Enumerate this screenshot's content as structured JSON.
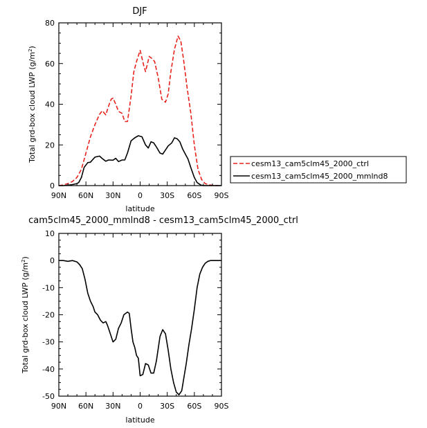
{
  "chart_data": [
    {
      "type": "line",
      "title": "DJF",
      "xlabel": "latitude",
      "ylabel": "Total grd-box cloud LWP",
      "ylabel_unit": "(g/m",
      "ylabel_sup": "2",
      "ylabel_close": ")",
      "xlim": [
        -90,
        90
      ],
      "ylim": [
        0,
        80
      ],
      "xticks": [
        -90,
        -60,
        -30,
        0,
        30,
        60,
        90
      ],
      "xtick_labels": [
        "90N",
        "60N",
        "30N",
        "0",
        "30S",
        "60S",
        "90S"
      ],
      "yticks": [
        0,
        20,
        40,
        60,
        80
      ],
      "ytick_labels": [
        "0",
        "20",
        "40",
        "60",
        "80"
      ],
      "legend_position": "right",
      "series": [
        {
          "name": "cesm13_cam5clm45_2000_ctrl",
          "color": "#e8211c",
          "dash": "dashed",
          "x": [
            -90,
            -85,
            -80,
            -75,
            -70,
            -65,
            -60,
            -55,
            -50,
            -45,
            -42,
            -38,
            -35,
            -32,
            -30,
            -27,
            -24,
            -20,
            -17,
            -14,
            -10,
            -7,
            -4,
            0,
            4,
            6,
            10,
            13,
            16,
            20,
            24,
            28,
            31,
            34,
            38,
            42,
            45,
            48,
            52,
            56,
            60,
            64,
            68,
            72,
            76,
            80,
            85,
            90
          ],
          "y": [
            0,
            0.3,
            1,
            2,
            4,
            8,
            16,
            24,
            30,
            35,
            36.8,
            34.8,
            39,
            42.5,
            43,
            40,
            36.5,
            35.5,
            31.5,
            31.5,
            44,
            56,
            61,
            66.5,
            59,
            56,
            63.5,
            62.5,
            61,
            53,
            42.5,
            41,
            45,
            56,
            67,
            73.5,
            71,
            62,
            48,
            36,
            20,
            8,
            3,
            1,
            0.4,
            0.1,
            0,
            0
          ]
        },
        {
          "name": "cesm13_cam5clm45_2000_mmlnd8",
          "color": "#000000",
          "dash": "solid",
          "x": [
            -90,
            -85,
            -80,
            -75,
            -70,
            -68,
            -65,
            -62,
            -58,
            -55,
            -50,
            -45,
            -42,
            -38,
            -35,
            -30,
            -27,
            -24,
            -20,
            -17,
            -14,
            -10,
            -6,
            -2,
            2,
            6,
            9,
            12,
            15,
            18,
            22,
            25,
            28,
            31,
            35,
            38,
            41,
            44,
            47,
            50,
            53,
            56,
            60,
            63,
            67,
            70,
            75,
            80,
            85,
            90
          ],
          "y": [
            0,
            0,
            0.2,
            0.5,
            1,
            1.5,
            4,
            9,
            11.3,
            11.5,
            14,
            14.5,
            13.3,
            12,
            12.6,
            12.5,
            13.4,
            11.8,
            12.6,
            12.6,
            16,
            22,
            23.5,
            24.5,
            24,
            20,
            18.5,
            21.5,
            21,
            19,
            16,
            15.5,
            17.5,
            19.5,
            21,
            23.5,
            23,
            21.5,
            18,
            15.5,
            13,
            9,
            4,
            1.5,
            0.3,
            0,
            0,
            0,
            0,
            0
          ]
        }
      ]
    },
    {
      "type": "line",
      "title": "cam5clm45_2000_mmlnd8 - cesm13_cam5clm45_2000_ctrl",
      "xlabel": "latitude",
      "ylabel": "Total grd-box cloud LWP",
      "ylabel_unit": "(g/m",
      "ylabel_sup": "2",
      "ylabel_close": ")",
      "xlim": [
        -90,
        90
      ],
      "ylim": [
        -50,
        10
      ],
      "xticks": [
        -90,
        -60,
        -30,
        0,
        30,
        60,
        90
      ],
      "xtick_labels": [
        "90N",
        "60N",
        "30N",
        "0",
        "30S",
        "60S",
        "90S"
      ],
      "yticks": [
        -50,
        -40,
        -30,
        -20,
        -10,
        0,
        10
      ],
      "ytick_labels": [
        "-50",
        "-40",
        "-30",
        "-20",
        "-10",
        "0",
        "10"
      ],
      "series": [
        {
          "name": "",
          "color": "#000000",
          "dash": "solid",
          "x": [
            -90,
            -85,
            -80,
            -75,
            -70,
            -67,
            -64,
            -61,
            -58,
            -55,
            -52,
            -50,
            -47,
            -44,
            -41,
            -38,
            -36,
            -33,
            -30,
            -27,
            -24,
            -21,
            -18,
            -16,
            -14,
            -12,
            -10,
            -8,
            -6,
            -4,
            -2,
            0,
            3,
            6,
            9,
            12,
            15,
            18,
            22,
            25,
            28,
            31,
            34,
            37,
            40,
            43,
            46,
            48,
            51,
            54,
            57,
            60,
            63,
            66,
            69,
            72,
            75,
            78,
            82,
            86,
            90
          ],
          "y": [
            0,
            0,
            -0.3,
            0,
            -0.5,
            -1.5,
            -3,
            -7,
            -12,
            -15,
            -17,
            -19,
            -20,
            -22,
            -23,
            -22.5,
            -24,
            -27,
            -30,
            -29,
            -25,
            -23,
            -20,
            -19.5,
            -19,
            -19.5,
            -25,
            -30,
            -32,
            -35,
            -36,
            -42.5,
            -42,
            -38,
            -38.5,
            -41.5,
            -41.5,
            -37,
            -28,
            -25.5,
            -27,
            -33,
            -40,
            -45,
            -48.5,
            -49.5,
            -48,
            -44,
            -38,
            -31,
            -25,
            -18,
            -10,
            -5,
            -2.5,
            -1,
            -0.3,
            0,
            0,
            0,
            0
          ]
        }
      ]
    }
  ]
}
